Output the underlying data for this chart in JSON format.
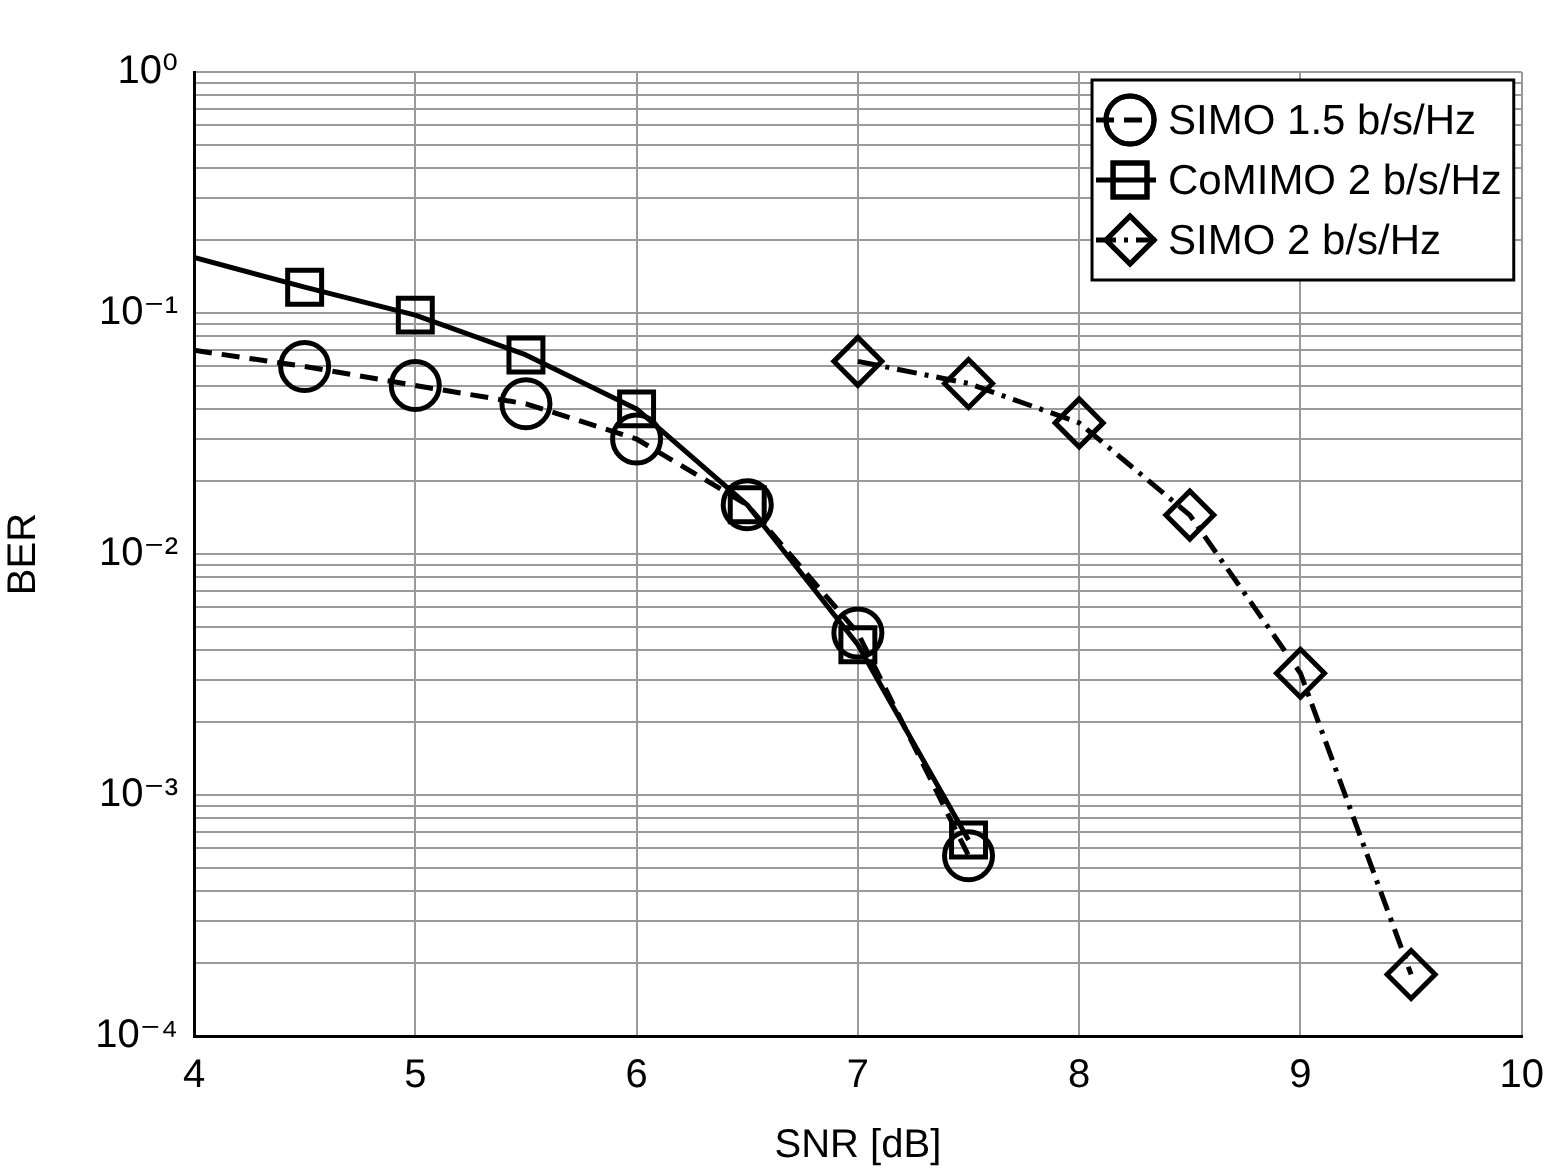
{
  "chart_data": {
    "type": "line",
    "xlabel": "SNR [dB]",
    "ylabel": "BER",
    "log": "y",
    "grid": true,
    "legend": "top right",
    "xlim": [
      4,
      10
    ],
    "xticks": [
      4,
      5,
      6,
      7,
      8,
      9,
      10
    ],
    "ylim": [
      0.0001,
      1
    ],
    "yticks": [
      {
        "value": 0.0001,
        "label": "10⁻⁴"
      },
      {
        "value": 0.0002,
        "label": null
      },
      {
        "value": 0.0003,
        "label": null
      },
      {
        "value": 0.0004,
        "label": null
      },
      {
        "value": 0.0005,
        "label": null
      },
      {
        "value": 0.0006,
        "label": null
      },
      {
        "value": 0.0007,
        "label": null
      },
      {
        "value": 0.0008,
        "label": null
      },
      {
        "value": 0.0009,
        "label": null
      },
      {
        "value": 0.001,
        "label": "10⁻³"
      },
      {
        "value": 0.002,
        "label": null
      },
      {
        "value": 0.003,
        "label": null
      },
      {
        "value": 0.004,
        "label": null
      },
      {
        "value": 0.005,
        "label": null
      },
      {
        "value": 0.006,
        "label": null
      },
      {
        "value": 0.007,
        "label": null
      },
      {
        "value": 0.008,
        "label": null
      },
      {
        "value": 0.009,
        "label": null
      },
      {
        "value": 0.01,
        "label": "10⁻²"
      },
      {
        "value": 0.02,
        "label": null
      },
      {
        "value": 0.03,
        "label": null
      },
      {
        "value": 0.04,
        "label": null
      },
      {
        "value": 0.05,
        "label": null
      },
      {
        "value": 0.06,
        "label": null
      },
      {
        "value": 0.07,
        "label": null
      },
      {
        "value": 0.08,
        "label": null
      },
      {
        "value": 0.09,
        "label": null
      },
      {
        "value": 0.1,
        "label": "10⁻¹"
      },
      {
        "value": 0.2,
        "label": null
      },
      {
        "value": 0.3,
        "label": null
      },
      {
        "value": 0.4,
        "label": null
      },
      {
        "value": 0.5,
        "label": null
      },
      {
        "value": 0.6,
        "label": null
      },
      {
        "value": 0.7,
        "label": null
      },
      {
        "value": 0.8,
        "label": null
      },
      {
        "value": 0.9,
        "label": null
      },
      {
        "value": 1,
        "label": "10⁰"
      }
    ],
    "series": [
      {
        "name": "SIMO 1.5 b/s/Hz",
        "color": "#000000",
        "marker": "circle",
        "line_style": "dashed",
        "x": [
          4,
          4.5,
          5,
          5.5,
          6,
          6.5,
          7,
          7.5
        ],
        "values": [
          0.07,
          0.06,
          0.05,
          0.042,
          0.03,
          0.016,
          0.0047,
          0.00056
        ]
      },
      {
        "name": "CoMIMO 2 b/s/Hz",
        "color": "#000000",
        "marker": "square",
        "line_style": "solid",
        "x": [
          4,
          4.5,
          5,
          5.5,
          6,
          6.5,
          7,
          7.5
        ],
        "values": [
          0.17,
          0.128,
          0.098,
          0.067,
          0.04,
          0.016,
          0.0042,
          0.00065
        ]
      },
      {
        "name": "SIMO 2 b/s/Hz",
        "color": "#000000",
        "marker": "diamond",
        "line_style": "dashdot",
        "x": [
          7,
          7.5,
          8,
          8.5,
          9,
          9.5
        ],
        "values": [
          0.063,
          0.051,
          0.035,
          0.0145,
          0.0032,
          0.00018
        ]
      }
    ]
  }
}
